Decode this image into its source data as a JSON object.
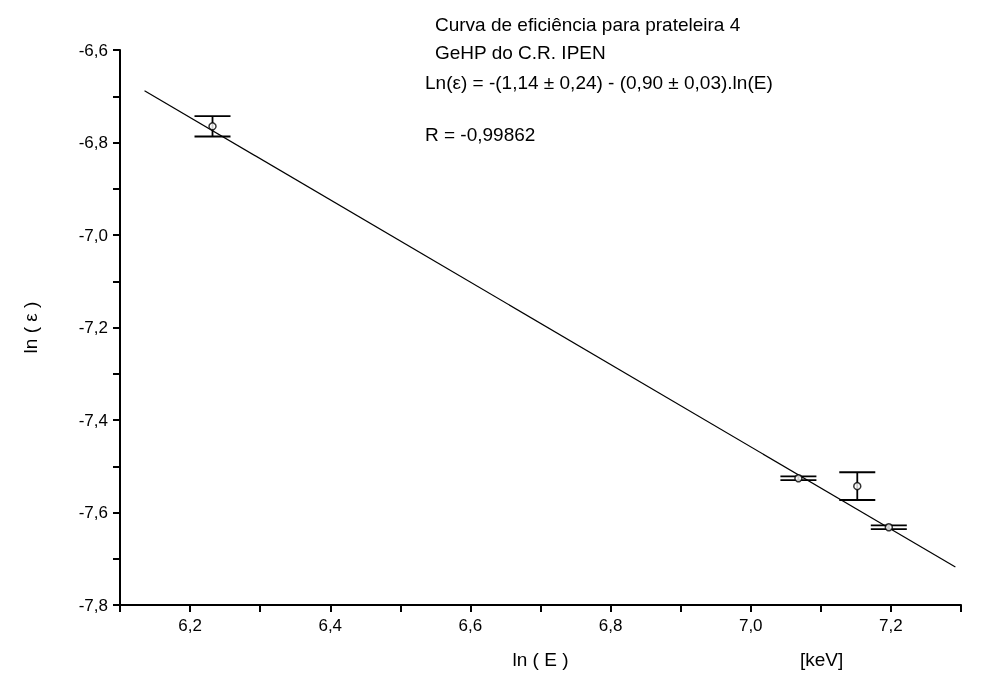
{
  "chart_data": {
    "type": "scatter",
    "title": "Curva de eficiência para prateleira 4",
    "subtitle": "GeHP do C.R. IPEN",
    "xlabel": "ln ( E )",
    "ylabel": "ln ( ε )",
    "annotations": [
      "Ln(ε) = -(1,14 ± 0,24) - (0,90 ± 0,03).ln(E)",
      "R = -0,99862",
      "[keV]"
    ],
    "series": [
      {
        "marker": "circle",
        "color": "#000000",
        "x": [
          6.232,
          7.068,
          7.152,
          7.197
        ],
        "values": [
          -6.765,
          -7.526,
          -7.543,
          -7.632
        ],
        "errors": [
          0.022,
          0.004,
          0.03,
          0.004
        ]
      },
      {
        "type": "line",
        "marker": "none",
        "color": "#000000",
        "x": [
          6.135,
          7.292
        ],
        "values": [
          -6.688,
          -7.718
        ]
      }
    ],
    "xlim": [
      6.1,
      7.3
    ],
    "xticks": [
      {
        "value": 6.1,
        "label": null
      },
      {
        "value": 6.2,
        "label": "6,2"
      },
      {
        "value": 6.3,
        "label": null
      },
      {
        "value": 6.4,
        "label": "6,4"
      },
      {
        "value": 6.5,
        "label": null
      },
      {
        "value": 6.6,
        "label": "6,6"
      },
      {
        "value": 6.7,
        "label": null
      },
      {
        "value": 6.8,
        "label": "6,8"
      },
      {
        "value": 6.9,
        "label": null
      },
      {
        "value": 7.0,
        "label": "7,0"
      },
      {
        "value": 7.1,
        "label": null
      },
      {
        "value": 7.2,
        "label": "7,2"
      },
      {
        "value": 7.3,
        "label": null
      }
    ],
    "ylim": [
      -7.8,
      -6.6
    ],
    "yticks": [
      {
        "value": -7.8,
        "label": "-7,8"
      },
      {
        "value": -7.7,
        "label": null
      },
      {
        "value": -7.6,
        "label": "-7,6"
      },
      {
        "value": -7.5,
        "label": null
      },
      {
        "value": -7.4,
        "label": "-7,4"
      },
      {
        "value": -7.3,
        "label": null
      },
      {
        "value": -7.2,
        "label": "-7,2"
      },
      {
        "value": -7.1,
        "label": null
      },
      {
        "value": -7.0,
        "label": "-7,0"
      },
      {
        "value": -6.9,
        "label": null
      },
      {
        "value": -6.8,
        "label": "-6,8"
      },
      {
        "value": -6.7,
        "label": null
      },
      {
        "value": -6.6,
        "label": "-6,6"
      }
    ],
    "grid": false,
    "line_style": "solid"
  }
}
